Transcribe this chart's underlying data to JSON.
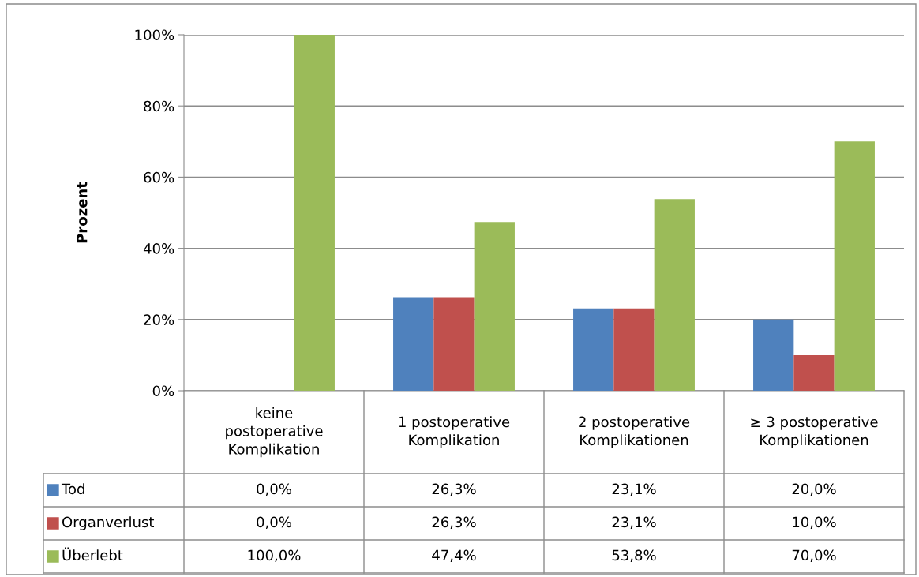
{
  "chart_data": {
    "type": "bar",
    "ylabel": "Prozent",
    "categories": [
      "keine\npostoperative\nKomplikation",
      "1 postoperative\nKomplikation",
      "2 postoperative\nKomplikationen",
      "≥ 3 postoperative\nKomplikationen"
    ],
    "series": [
      {
        "name": "Tod",
        "color": "#4f81bd",
        "values": [
          0.0,
          26.3,
          23.1,
          20.0
        ],
        "value_labels": [
          "0,0%",
          "26,3%",
          "23,1%",
          "20,0%"
        ]
      },
      {
        "name": "Organverlust",
        "color": "#c0504d",
        "values": [
          0.0,
          26.3,
          23.1,
          10.0
        ],
        "value_labels": [
          "0,0%",
          "26,3%",
          "23,1%",
          "10,0%"
        ]
      },
      {
        "name": "Überlebt",
        "color": "#9bbb59",
        "values": [
          100.0,
          47.4,
          53.8,
          70.0
        ],
        "value_labels": [
          "100,0%",
          "47,4%",
          "53,8%",
          "70,0%"
        ]
      }
    ],
    "ylim": [
      0,
      100
    ],
    "yticks": [
      {
        "value": 0,
        "label": "0%"
      },
      {
        "value": 20,
        "label": "20%"
      },
      {
        "value": 40,
        "label": "40%"
      },
      {
        "value": 60,
        "label": "60%"
      },
      {
        "value": 80,
        "label": "80%"
      },
      {
        "value": 100,
        "label": "100%"
      }
    ],
    "grid": "y",
    "legend": "bottom"
  }
}
